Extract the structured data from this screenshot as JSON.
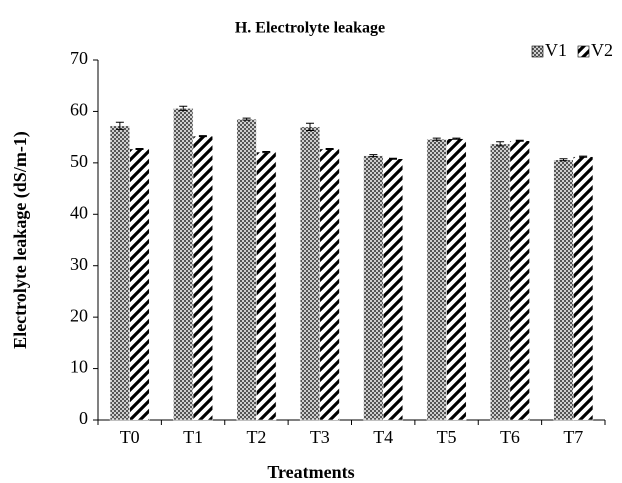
{
  "chart_data": {
    "type": "bar",
    "title": "H. Electrolyte leakage",
    "x_label": "Treatments",
    "y_label": "Electrolyte leakage (dS/m-1)",
    "categories": [
      "T0",
      "T1",
      "T2",
      "T3",
      "T4",
      "T5",
      "T6",
      "T7"
    ],
    "series": [
      {
        "name": "V1",
        "color": "#555555",
        "values": [
          57.2,
          60.6,
          58.5,
          57.0,
          51.4,
          54.6,
          53.7,
          50.6
        ],
        "errors": [
          0.7,
          0.4,
          0.2,
          0.7,
          0.2,
          0.2,
          0.4,
          0.2
        ]
      },
      {
        "name": "V2",
        "color": "#000000",
        "values": [
          52.7,
          55.2,
          52.1,
          52.7,
          50.8,
          54.7,
          54.3,
          51.2
        ],
        "errors": [
          0.1,
          0.1,
          0.1,
          0.1,
          0.1,
          0.1,
          0.1,
          0.1
        ]
      }
    ],
    "ylim": [
      0,
      70
    ],
    "yticks": [
      0,
      10,
      20,
      30,
      40,
      50,
      60,
      70
    ],
    "grid": false,
    "legend": "top-right"
  }
}
